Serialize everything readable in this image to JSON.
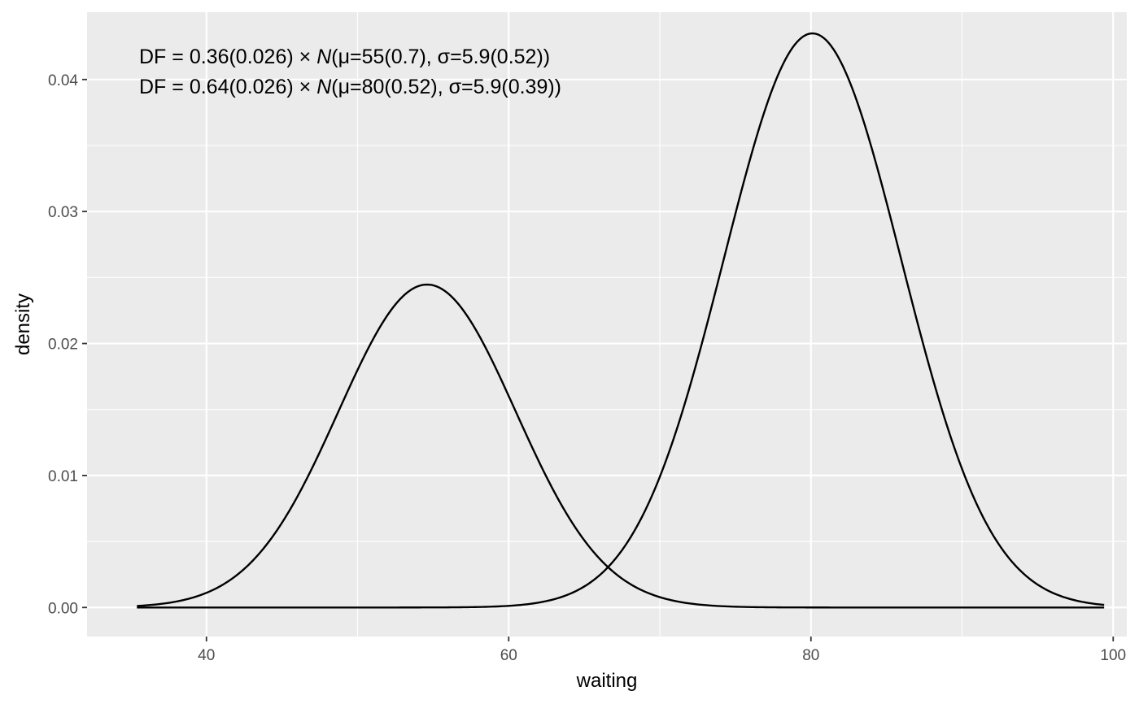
{
  "chart_data": {
    "type": "line",
    "xlabel": "waiting",
    "ylabel": "density",
    "xlim": [
      32.1,
      100.9
    ],
    "ylim": [
      -0.0022,
      0.0451
    ],
    "x_ticks": [
      40,
      60,
      80,
      100
    ],
    "x_tick_labels": [
      "40",
      "60",
      "80",
      "100"
    ],
    "x_minor_ticks": [
      50,
      70,
      90
    ],
    "y_ticks": [
      0.0,
      0.01,
      0.02,
      0.03,
      0.04
    ],
    "y_tick_labels": [
      "0.00",
      "0.01",
      "0.02",
      "0.03",
      "0.04"
    ],
    "y_minor_ticks": [
      0.005,
      0.015,
      0.025,
      0.035
    ],
    "x_range": [
      35.4,
      99.4
    ],
    "grid": true,
    "colors": {
      "panel": "#ebebeb",
      "grid": "#ffffff",
      "line": "#000000",
      "tick_text": "#4d4d4d"
    },
    "series": [
      {
        "lambda": 0.36,
        "mu": 54.6,
        "sigma": 5.87
      },
      {
        "lambda": 0.64,
        "mu": 80.1,
        "sigma": 5.87
      }
    ],
    "annotations": [
      {
        "prefix": "DF = 0.36(0.026) × ",
        "dist": "N",
        "suffix": "(μ=55(0.7), σ=5.9(0.52))"
      },
      {
        "prefix": "DF = 0.64(0.026) × ",
        "dist": "N",
        "suffix": "(μ=80(0.52), σ=5.9(0.39))"
      }
    ]
  }
}
